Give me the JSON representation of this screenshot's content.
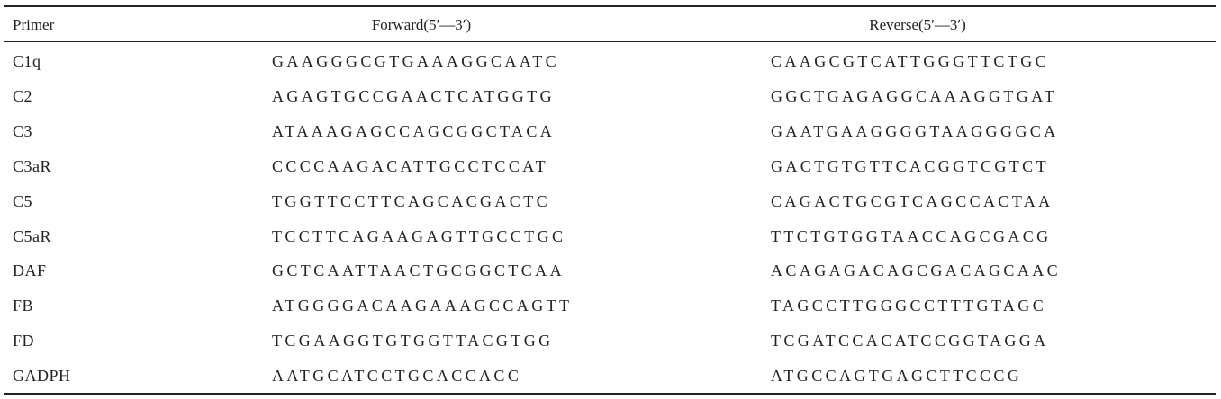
{
  "table": {
    "header": [
      "Primer",
      "Forward(5′—3′)",
      "Reverse(5′—3′)"
    ],
    "rows": [
      [
        "C1q",
        "GAAGGGCGTGAAAGGCAATC",
        "CAAGCGTCATTGGGTTCTGC"
      ],
      [
        "C2",
        "AGAGTGCCGAACTCATGGTG",
        "GGCTGAGAGGCAAAGGTGAT"
      ],
      [
        "C3",
        "ATAAAGAGCCAGCGGCTACA",
        "GAATGAAGGGGTAAGGGGCA"
      ],
      [
        "C3aR",
        "CCCCAAGACATTGCCTCCAT",
        "GACTGTGTTCACGGTCGTCT"
      ],
      [
        "C5",
        "TGGTTCCTTCAGCACGACTC",
        "CAGACTGCGTCAGCCACTAA"
      ],
      [
        "C5aR",
        "TCCTTCAGAAGAGTTGCCTGC",
        "TTCTGTGGTAACCAGCGACG"
      ],
      [
        "DAF",
        "GCTCAATTAACTGCGGCTCAA",
        "ACAGAGACAGCGACAGCAAC"
      ],
      [
        "FB",
        "ATGGGGACAAGAAAGCCAGTT",
        "TAGCCTTGGGCCTTTGTAGC"
      ],
      [
        "FD",
        "TCGAAGGTGTGGTTACGTGG",
        "TCGATCCACATCCGGTAGGA"
      ],
      [
        "GADPH",
        "AATGCATCCTGCACCACC",
        "ATGCCAGTGAGCTTCCCG"
      ]
    ]
  }
}
